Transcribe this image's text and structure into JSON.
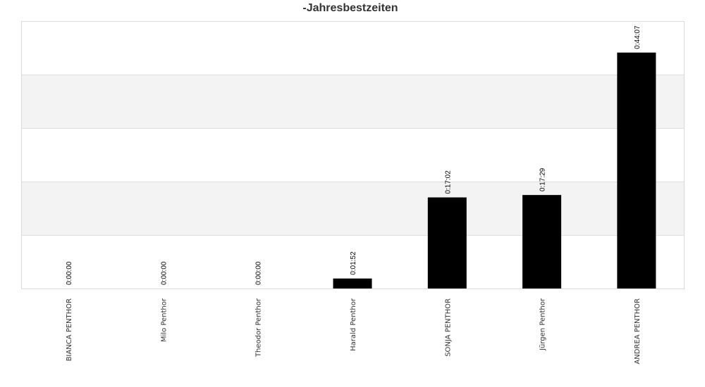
{
  "chart_data": {
    "type": "bar",
    "title": "-Jahresbestzeiten",
    "xlabel": "",
    "ylabel": "",
    "categories": [
      "BIANCA PENTHOR",
      "Milo Penthor",
      "Theodor Penthor",
      "Harald Penthor",
      "SONJA PENTHOR",
      "Jürgen Penthor",
      "ANDREA PENTHOR"
    ],
    "values": [
      0,
      0,
      0,
      112,
      1022,
      1049,
      2647
    ],
    "value_labels": [
      "0:00:00",
      "0:00:00",
      "0:00:00",
      "0:01:52",
      "0:17:02",
      "0:17:29",
      "0:44:07"
    ],
    "value_unit": "seconds",
    "ylim": [
      0,
      3000
    ],
    "grid": true,
    "legend": "none",
    "colors": {
      "bar": "#000000",
      "band_alt": "#f3f3f3",
      "grid": "#dddddd",
      "title": "#333333"
    }
  }
}
